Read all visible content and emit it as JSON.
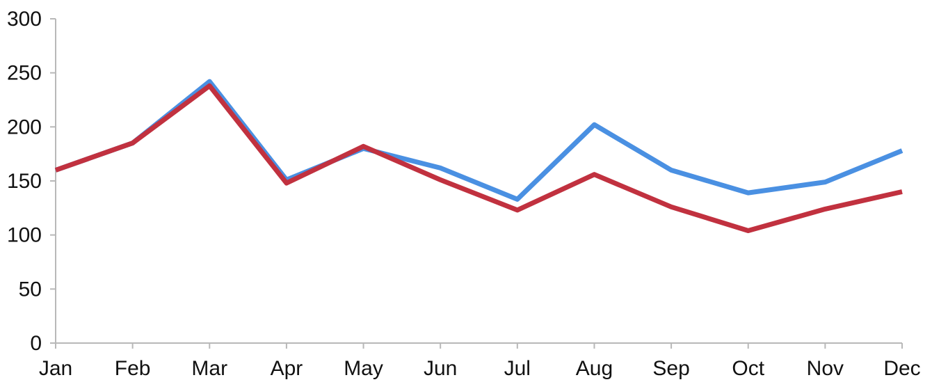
{
  "chart_data": {
    "type": "line",
    "title": "",
    "xlabel": "",
    "ylabel": "",
    "categories": [
      "Jan",
      "Feb",
      "Mar",
      "Apr",
      "May",
      "Jun",
      "Jul",
      "Aug",
      "Sep",
      "Oct",
      "Nov",
      "Dec"
    ],
    "y_ticks": [
      "0",
      "50",
      "100",
      "150",
      "200",
      "250",
      "300"
    ],
    "ylim": [
      0,
      300
    ],
    "grid": false,
    "legend": "none",
    "series": [
      {
        "color": "#4a90e2",
        "values": [
          160,
          185,
          242,
          151,
          180,
          162,
          133,
          202,
          160,
          139,
          149,
          178
        ]
      },
      {
        "color": "#c1313f",
        "values": [
          160,
          185,
          238,
          148,
          182,
          151,
          123,
          156,
          126,
          104,
          124,
          140
        ]
      }
    ]
  }
}
